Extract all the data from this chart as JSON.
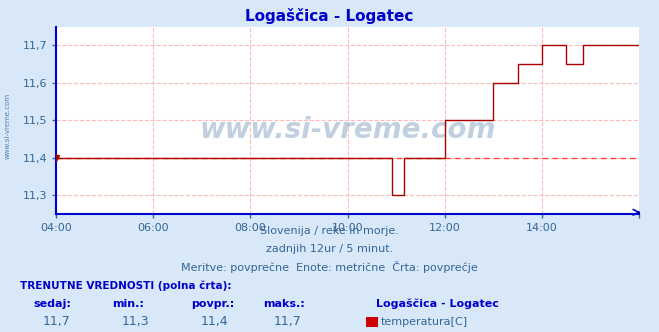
{
  "title": "Logaščica - Logatec",
  "bg_color": "#d8e8f8",
  "plot_bg_color": "#ffffff",
  "line_color": "#aa0000",
  "avg_line_color": "#ff4444",
  "axis_color": "#0000cc",
  "text_color": "#336699",
  "grid_color": "#ffbbbb",
  "xlabel_color": "#336699",
  "ylim": [
    11.25,
    11.75
  ],
  "yticks": [
    11.3,
    11.4,
    11.5,
    11.6,
    11.7
  ],
  "xlim": [
    0,
    144
  ],
  "xtick_positions": [
    0,
    24,
    48,
    72,
    96,
    120,
    144
  ],
  "xtick_labels": [
    "04:00",
    "06:00",
    "08:00",
    "10:00",
    "12:00",
    "14:00",
    ""
  ],
  "avg_value": 11.4,
  "subtitle1": "Slovenija / reke in morje.",
  "subtitle2": "zadnjih 12ur / 5 minut.",
  "subtitle3": "Meritve: povprečne  Enote: metrične  Črta: povprečje",
  "info_title": "TRENUTNE VREDNOSTI (polna črta):",
  "info_labels": [
    "sedaj:",
    "min.:",
    "povpr.:",
    "maks.:"
  ],
  "info_values": [
    "11,7",
    "11,3",
    "11,4",
    "11,7"
  ],
  "legend_station": "Logaščica - Logatec",
  "legend_param": "temperatura[C]",
  "legend_color": "#cc0000",
  "watermark": "www.si-vreme.com",
  "data_x": [
    0,
    83,
    83,
    86,
    86,
    96,
    96,
    101,
    101,
    108,
    108,
    114,
    114,
    120,
    120,
    126,
    126,
    130,
    130,
    132,
    132,
    144
  ],
  "data_y": [
    11.4,
    11.4,
    11.3,
    11.3,
    11.4,
    11.4,
    11.5,
    11.5,
    11.5,
    11.5,
    11.6,
    11.6,
    11.65,
    11.65,
    11.7,
    11.7,
    11.65,
    11.65,
    11.7,
    11.7,
    11.7,
    11.7
  ],
  "figsize": [
    6.59,
    3.32
  ],
  "dpi": 100
}
